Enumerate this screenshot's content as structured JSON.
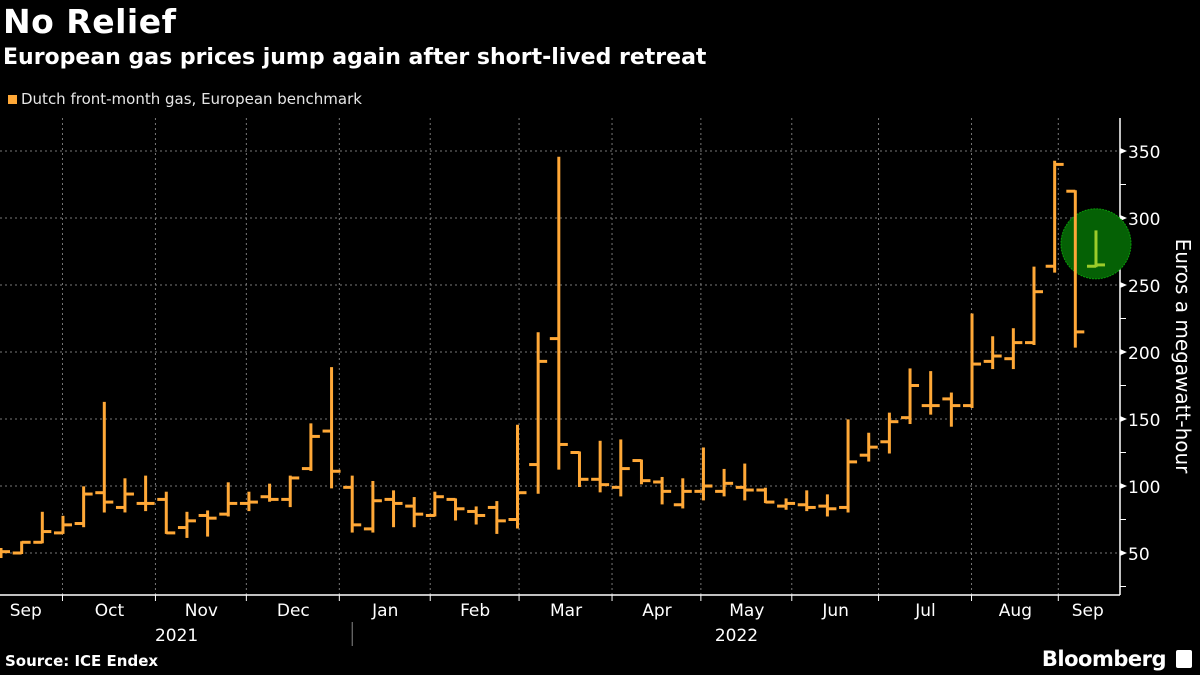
{
  "header": {
    "title": "No Relief",
    "subtitle": "European gas prices jump again after short-lived retreat"
  },
  "footer": {
    "source": "Source: ICE Endex",
    "brand": "Bloomberg"
  },
  "colors": {
    "bar": "#ffa837",
    "highlight_fill": "#056105",
    "highlight_bar": "#9ccc2a",
    "grid": "#777777"
  },
  "chart_data": {
    "type": "ohlc",
    "title": "No Relief",
    "subtitle": "European gas prices jump again after short-lived retreat",
    "legend": [
      {
        "name": "Dutch front-month gas, European benchmark",
        "color": "#ffa837"
      }
    ],
    "legend_position": "top-left",
    "ylabel": "Euros a megawatt-hour",
    "ylim": [
      25,
      370
    ],
    "yticks": [
      50,
      100,
      150,
      200,
      250,
      300,
      350
    ],
    "grid": true,
    "x_unit": "week index (weekly bars, Sep 2021 - Sep 2022)",
    "month_ticks": [
      {
        "label": "Sep",
        "start": -0.6,
        "end": 3.0
      },
      {
        "label": "Oct",
        "start": 3.0,
        "end": 7.5
      },
      {
        "label": "Nov",
        "start": 7.5,
        "end": 11.9
      },
      {
        "label": "Dec",
        "start": 11.9,
        "end": 16.4
      },
      {
        "label": "Jan",
        "start": 16.4,
        "end": 20.8
      },
      {
        "label": "Feb",
        "start": 20.8,
        "end": 25.1
      },
      {
        "label": "Mar",
        "start": 25.1,
        "end": 29.6
      },
      {
        "label": "Apr",
        "start": 29.6,
        "end": 33.9
      },
      {
        "label": "May",
        "start": 33.9,
        "end": 38.3
      },
      {
        "label": "Jun",
        "start": 38.3,
        "end": 42.5
      },
      {
        "label": "Jul",
        "start": 42.5,
        "end": 47.0
      },
      {
        "label": "Aug",
        "start": 47.0,
        "end": 51.2
      },
      {
        "label": "Sep",
        "start": 51.2,
        "end": 54.0
      }
    ],
    "year_ticks": [
      {
        "label": "2021",
        "center": 8.5
      },
      {
        "label": "2022",
        "center": 35.6
      }
    ],
    "year_divider": 17.0,
    "highlight_index": 53,
    "bars": [
      [
        50,
        53,
        47,
        51
      ],
      [
        50,
        58,
        50,
        58
      ],
      [
        58,
        80,
        58,
        66
      ],
      [
        65,
        77,
        65,
        71
      ],
      [
        72,
        99,
        70,
        94
      ],
      [
        95,
        162,
        81,
        88
      ],
      [
        84,
        105,
        81,
        94
      ],
      [
        87,
        107,
        82,
        87
      ],
      [
        90,
        95,
        65,
        65
      ],
      [
        69,
        80,
        62,
        74
      ],
      [
        78,
        81,
        63,
        76
      ],
      [
        79,
        102,
        78,
        87
      ],
      [
        87,
        95,
        82,
        88
      ],
      [
        92,
        101,
        89,
        90
      ],
      [
        90,
        107,
        85,
        106
      ],
      [
        113,
        146,
        112,
        137
      ],
      [
        141,
        188,
        99,
        111
      ],
      [
        99,
        107,
        66,
        71
      ],
      [
        68,
        103,
        66,
        89
      ],
      [
        90,
        96,
        70,
        87
      ],
      [
        85,
        91,
        70,
        79
      ],
      [
        78,
        95,
        78,
        92
      ],
      [
        90,
        90,
        75,
        83
      ],
      [
        81,
        84,
        72,
        78
      ],
      [
        84,
        88,
        65,
        74
      ],
      [
        75,
        145,
        69,
        95
      ],
      [
        116,
        214,
        95,
        193
      ],
      [
        210,
        345,
        113,
        131
      ],
      [
        125,
        125,
        100,
        105
      ],
      [
        105,
        133,
        96,
        101
      ],
      [
        99,
        134,
        93,
        113
      ],
      [
        119,
        119,
        102,
        104
      ],
      [
        103,
        106,
        87,
        96
      ],
      [
        86,
        105,
        84,
        96
      ],
      [
        96,
        128,
        90,
        100
      ],
      [
        96,
        112,
        93,
        102
      ],
      [
        99,
        116,
        90,
        97
      ],
      [
        97,
        98,
        88,
        88
      ],
      [
        85,
        90,
        83,
        87
      ],
      [
        86,
        96,
        82,
        84
      ],
      [
        85,
        93,
        78,
        83
      ],
      [
        84,
        149,
        81,
        118
      ],
      [
        123,
        139,
        119,
        129
      ],
      [
        133,
        154,
        125,
        148
      ],
      [
        151,
        187,
        147,
        175
      ],
      [
        160,
        185,
        154,
        160
      ],
      [
        165,
        169,
        145,
        160
      ],
      [
        160,
        228,
        159,
        191
      ],
      [
        193,
        211,
        188,
        197
      ],
      [
        195,
        217,
        188,
        207
      ],
      [
        207,
        263,
        206,
        245
      ],
      [
        264,
        342,
        260,
        340
      ],
      [
        320,
        320,
        204,
        215
      ],
      [
        264,
        290,
        264,
        265
      ]
    ]
  }
}
